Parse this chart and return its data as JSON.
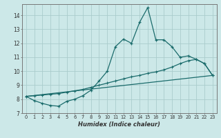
{
  "xlabel": "Humidex (Indice chaleur)",
  "background_color": "#cce8e8",
  "grid_color": "#aacccc",
  "line_color": "#1a6b6b",
  "xlim": [
    -0.5,
    23.5
  ],
  "ylim": [
    7.0,
    14.8
  ],
  "yticks": [
    7,
    8,
    9,
    10,
    11,
    12,
    13,
    14
  ],
  "xticks": [
    0,
    1,
    2,
    3,
    4,
    5,
    6,
    7,
    8,
    9,
    10,
    11,
    12,
    13,
    14,
    15,
    16,
    17,
    18,
    19,
    20,
    21,
    22,
    23
  ],
  "xtick_labels": [
    "0",
    "1",
    "2",
    "3",
    "4",
    "5",
    "6",
    "7",
    "8",
    "9",
    "10",
    "11",
    "12",
    "13",
    "14",
    "15",
    "16",
    "17",
    "18",
    "19",
    "20",
    "21",
    "22",
    "23"
  ],
  "series1_x": [
    0,
    1,
    2,
    3,
    4,
    5,
    6,
    7,
    8,
    9,
    10,
    11,
    12,
    13,
    14,
    15,
    16,
    17,
    18,
    19,
    20,
    21,
    22,
    23
  ],
  "series1_y": [
    8.2,
    7.9,
    7.7,
    7.55,
    7.5,
    7.85,
    8.0,
    8.25,
    8.65,
    9.3,
    10.0,
    11.75,
    12.3,
    12.0,
    13.5,
    14.55,
    12.25,
    12.25,
    11.75,
    11.0,
    11.1,
    10.85,
    10.55,
    9.7
  ],
  "series2_x": [
    0,
    1,
    2,
    3,
    4,
    5,
    6,
    7,
    8,
    9,
    10,
    11,
    12,
    13,
    14,
    15,
    16,
    17,
    18,
    19,
    20,
    21,
    22,
    23
  ],
  "series2_y": [
    8.2,
    8.25,
    8.3,
    8.35,
    8.4,
    8.5,
    8.6,
    8.7,
    8.85,
    9.0,
    9.15,
    9.3,
    9.45,
    9.6,
    9.7,
    9.85,
    9.95,
    10.1,
    10.3,
    10.55,
    10.75,
    10.85,
    10.55,
    9.7
  ],
  "series3_x": [
    0,
    23
  ],
  "series3_y": [
    8.2,
    9.7
  ]
}
